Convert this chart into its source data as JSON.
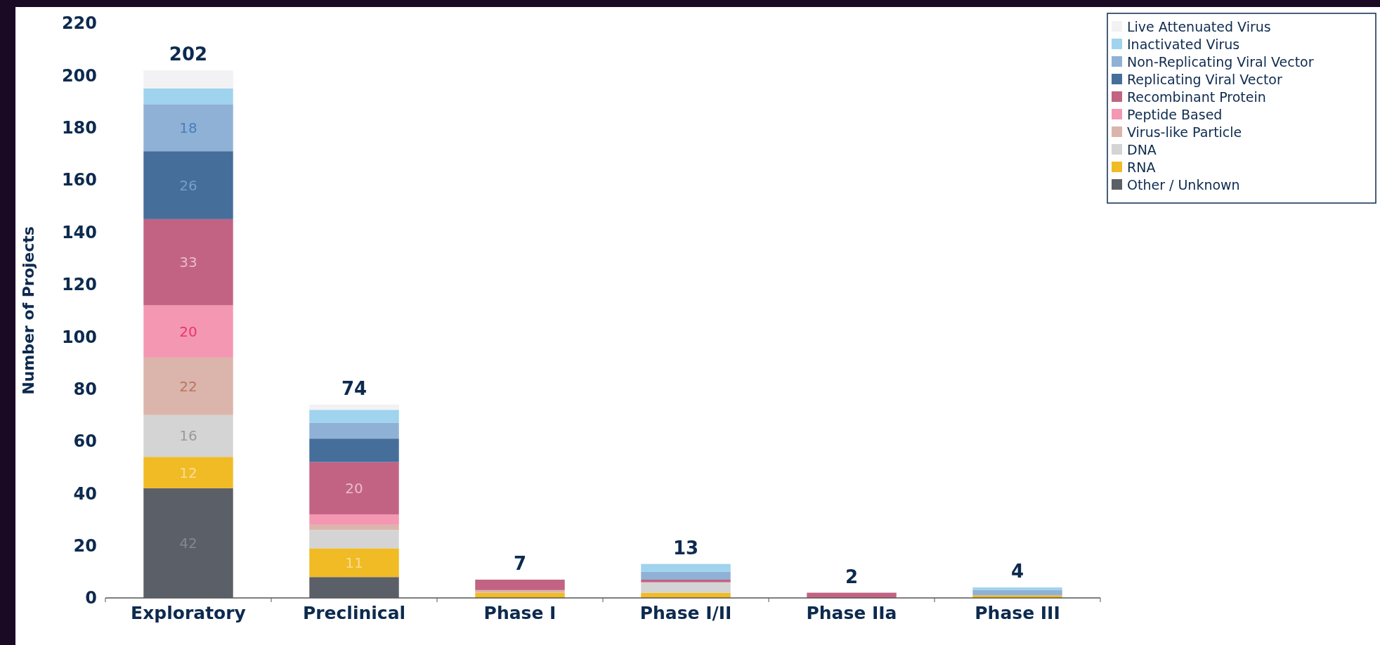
{
  "chart_data": {
    "type": "bar",
    "stacked": true,
    "ylabel": "Number of Projects",
    "categories": [
      "Exploratory",
      "Preclinical",
      "Phase I",
      "Phase I/II",
      "Phase IIa",
      "Phase III"
    ],
    "series": [
      {
        "name": "Other / Unknown",
        "color": "#5b5f67",
        "values": [
          42,
          8,
          0,
          0,
          0,
          0
        ],
        "value_labels": [
          "42",
          null,
          null,
          null,
          null,
          null
        ]
      },
      {
        "name": "RNA",
        "color": "#f0bb25",
        "values": [
          12,
          11,
          2,
          2,
          0,
          1
        ],
        "value_labels": [
          "12",
          "11",
          null,
          null,
          null,
          null
        ]
      },
      {
        "name": "DNA",
        "color": "#d4d4d4",
        "values": [
          16,
          7,
          0,
          4,
          0,
          0
        ],
        "value_labels": [
          "16",
          null,
          null,
          null,
          null,
          null
        ]
      },
      {
        "name": "Virus-like Particle",
        "color": "#dbb5ab",
        "values": [
          22,
          2,
          1,
          0,
          0,
          0
        ],
        "value_labels": [
          "22",
          null,
          null,
          null,
          null,
          null
        ]
      },
      {
        "name": "Peptide Based",
        "color": "#f497b3",
        "values": [
          20,
          4,
          0,
          0,
          0,
          0
        ],
        "value_labels": [
          "20",
          null,
          null,
          null,
          null,
          null
        ]
      },
      {
        "name": "Recombinant Protein",
        "color": "#c36383",
        "values": [
          33,
          20,
          4,
          1,
          2,
          0
        ],
        "value_labels": [
          "33",
          "20",
          null,
          null,
          null,
          null
        ]
      },
      {
        "name": "Replicating Viral Vector",
        "color": "#456e9b",
        "values": [
          26,
          9,
          0,
          0,
          0,
          0
        ],
        "value_labels": [
          "26",
          null,
          null,
          null,
          null,
          null
        ]
      },
      {
        "name": "Non-Replicating Viral Vector",
        "color": "#8fb1d6",
        "values": [
          18,
          6,
          0,
          3,
          0,
          2
        ],
        "value_labels": [
          "18",
          null,
          null,
          null,
          null,
          null
        ]
      },
      {
        "name": "Inactivated Virus",
        "color": "#9fd3ee",
        "values": [
          6,
          5,
          0,
          3,
          0,
          1
        ]
      },
      {
        "name": "Live Attenuated Virus",
        "color": "#f2f2f4",
        "values": [
          7,
          2,
          0,
          0,
          0,
          0
        ]
      }
    ],
    "totals": [
      "202",
      "74",
      "7",
      "13",
      "2",
      "4"
    ],
    "ylim": [
      0,
      220
    ],
    "yticks": [
      0,
      20,
      40,
      60,
      80,
      100,
      120,
      140,
      160,
      180,
      200,
      220
    ],
    "grid": false,
    "legend": "top right"
  }
}
